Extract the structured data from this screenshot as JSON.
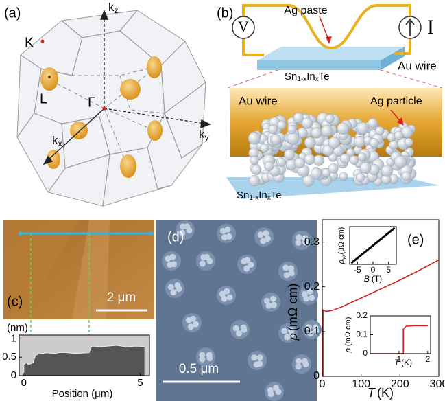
{
  "panels": {
    "a": {
      "label": "(a)",
      "K": "K",
      "L": "L",
      "Gamma": "Γ",
      "kz": {
        "main": "k",
        "sub": "z"
      },
      "ky": {
        "main": "k",
        "sub": "y"
      },
      "kx": {
        "main": "k",
        "sub": "x"
      }
    },
    "b": {
      "label": "(b)",
      "ag_paste": "Ag paste",
      "voltmeter": "V",
      "ammeter": "I",
      "au_wire_top": "Au wire",
      "au_wire_bottom": "Au wire",
      "ag_particle": "Ag particle",
      "sample_top": {
        "p1": "Sn",
        "s1": "1-x",
        "p2": "In",
        "s2": "x",
        "p3": "Te"
      },
      "sample_bottom": {
        "p1": "Sn",
        "s1": "1-x",
        "p2": "In",
        "s2": "x",
        "p3": "Te"
      }
    },
    "c": {
      "label": "(c)",
      "scale": "2 μm"
    },
    "d": {
      "label": "(d)",
      "scale": "0.5 μm"
    },
    "e": {
      "label": "(e)"
    }
  },
  "chart_data": [
    {
      "type": "area",
      "ylabel": "(nm)",
      "xlabel": "Position (μm)",
      "color": "#555555",
      "background": "#cccccc",
      "x": [
        0,
        0.1,
        0.2,
        0.3,
        0.4,
        0.5,
        0.6,
        0.8,
        1.0,
        1.3,
        1.6,
        1.9,
        2.2,
        2.5,
        2.8,
        2.9,
        3.0,
        3.3,
        3.6,
        4.0,
        4.4,
        4.8,
        5.2
      ],
      "values": [
        0.3,
        0.35,
        0.3,
        0.32,
        0.35,
        0.55,
        0.58,
        0.6,
        0.62,
        0.6,
        0.63,
        0.62,
        0.6,
        0.61,
        0.62,
        0.78,
        0.8,
        0.78,
        0.8,
        0.82,
        0.78,
        0.8,
        0.79
      ],
      "xlim": [
        -0.2,
        5.4
      ],
      "ylim": [
        0,
        1.1
      ],
      "xticks": [
        0,
        5
      ],
      "yticks": [
        0,
        0.5,
        1
      ]
    },
    {
      "type": "line",
      "color": "#d62020",
      "ylabel": {
        "symbol": "ρ",
        "unit": "(mΩ cm)"
      },
      "xlabel": {
        "symbol": "T",
        "unit": "(K)"
      },
      "x": [
        0,
        2,
        2,
        10,
        25,
        50,
        100,
        150,
        200,
        250,
        300
      ],
      "values": [
        0,
        0,
        0.148,
        0.145,
        0.147,
        0.155,
        0.175,
        0.195,
        0.215,
        0.237,
        0.26
      ],
      "xlim": [
        0,
        300
      ],
      "ylim": [
        0,
        0.35
      ],
      "xticks": [
        0,
        100,
        200,
        300
      ],
      "yticks": [
        0,
        0.1,
        0.2,
        0.3
      ]
    },
    {
      "type": "line",
      "color": "#000000",
      "ylabel": {
        "symbol": "ρ",
        "sub": "yx",
        "unit": "(μΩ cm)"
      },
      "xlabel": {
        "symbol": "B",
        "unit": "(T)"
      },
      "x": [
        -7,
        7
      ],
      "values": [
        -7,
        7
      ],
      "xlim": [
        -7.5,
        7.5
      ],
      "ylim": [
        -7.5,
        7.5
      ],
      "xticks": [
        -5,
        0,
        5
      ]
    },
    {
      "type": "line",
      "color": "#d62020",
      "ylabel": {
        "symbol": "ρ",
        "unit": "(mΩ cm)"
      },
      "xlabel": {
        "symbol": "T",
        "unit": "(K)"
      },
      "x": [
        0,
        1.15,
        1.15,
        1.25,
        1.5,
        2
      ],
      "values": [
        0,
        0,
        0.13,
        0.145,
        0.148,
        0.148
      ],
      "xlim": [
        0,
        2.1
      ],
      "ylim": [
        0,
        0.2
      ],
      "xticks": [
        1,
        2
      ],
      "yticks": [
        0,
        0.1,
        0.2
      ]
    }
  ]
}
